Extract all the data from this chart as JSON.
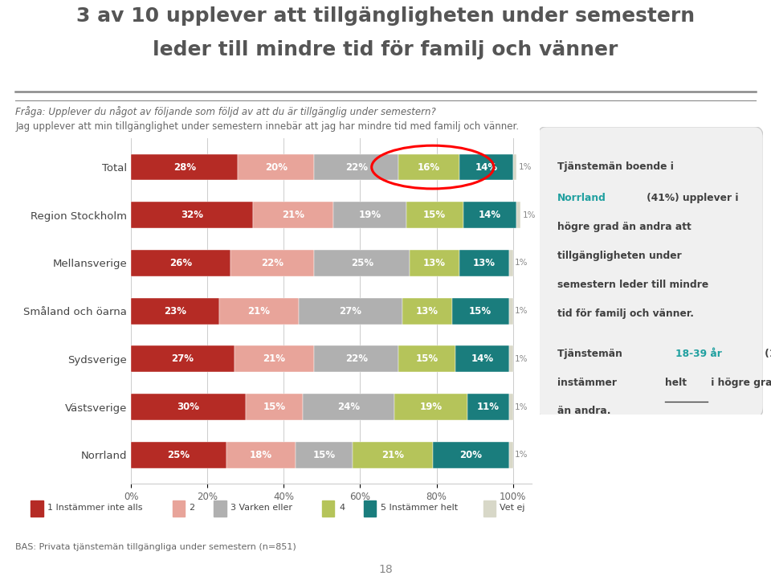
{
  "title_line1": "3 av 10 upplever att tillgängligheten under semestern",
  "title_line2": "leder till mindre tid för familj och vänner",
  "subtitle_italic": "Fråga: Upplever du något av följande som följd av att du är tillgänglig under semestern?",
  "subtitle_normal": "Jag upplever att min tillgänglighet under semestern innebär att jag har mindre tid med familj och vänner.",
  "categories": [
    "Total",
    "Region Stockholm",
    "Mellansverige",
    "Småland och öarna",
    "Sydsverige",
    "Västsverige",
    "Norrland"
  ],
  "series": {
    "1 Instämmer inte alls": [
      28,
      32,
      26,
      23,
      27,
      30,
      25
    ],
    "2": [
      20,
      21,
      22,
      21,
      21,
      15,
      18
    ],
    "3 Varken eller": [
      22,
      19,
      25,
      27,
      22,
      24,
      15
    ],
    "4": [
      16,
      15,
      13,
      13,
      15,
      19,
      21
    ],
    "5 Instämmer helt": [
      14,
      14,
      13,
      15,
      14,
      11,
      20
    ],
    "Vet ej": [
      1,
      1,
      1,
      1,
      1,
      1,
      1
    ]
  },
  "colors": {
    "1 Instämmer inte alls": "#b52b25",
    "2": "#e8a49a",
    "3 Varken eller": "#b0b0b0",
    "4": "#b5c45a",
    "5 Instämmer helt": "#1a7d7d",
    "Vet ej": "#d8d8c8"
  },
  "bas_text": "BAS: Privata tjänstemän tillgängliga under semestern (n=851)",
  "page_number": "18",
  "background_color": "#ffffff",
  "teal_color": "#20a0a0",
  "text_color": "#404040"
}
